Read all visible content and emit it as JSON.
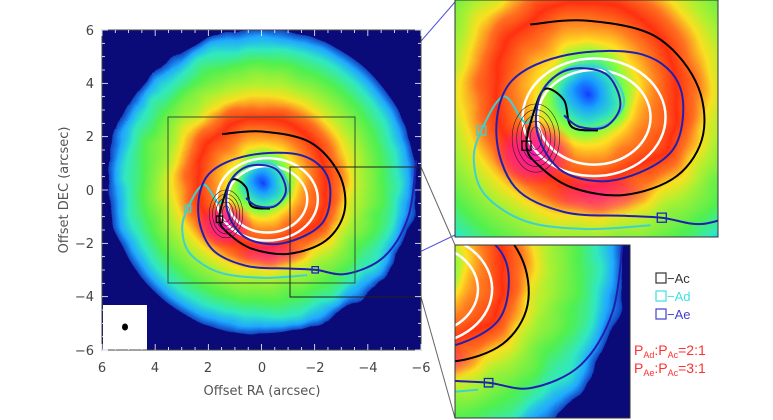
{
  "chart_data": {
    "type": "heatmap",
    "xlabel": "Offset RA (arcsec)",
    "ylabel": "Offset DEC (arcsec)",
    "xlim": [
      6,
      -6
    ],
    "ylim": [
      -6,
      6
    ],
    "xticks": [
      "6",
      "4",
      "2",
      "0",
      "−2",
      "−4",
      "−6"
    ],
    "yticks": [
      "6",
      "4",
      "2",
      "0",
      "−2",
      "−4",
      "−6"
    ],
    "colormap": "rainbow",
    "planets": [
      {
        "name": "Ac",
        "ra": 1.6,
        "dec": -1.1,
        "color": "#000000"
      },
      {
        "name": "Ad",
        "ra": 2.8,
        "dec": -0.7,
        "color": "#40d0d0"
      },
      {
        "name": "Ae",
        "ra": -2.0,
        "dec": -3.0,
        "color": "#2020c0"
      }
    ],
    "legend": [
      {
        "label": "−Ac",
        "color": "#333333"
      },
      {
        "label": "−Ad",
        "color": "#40e0e0"
      },
      {
        "label": "−Ae",
        "color": "#4040d0"
      }
    ],
    "ratios": [
      {
        "a": "P",
        "a_sub": "Ad",
        "b": "P",
        "b_sub": "Ac",
        "value": "=2:1"
      },
      {
        "a": "P",
        "a_sub": "Ae",
        "b": "P",
        "b_sub": "Ac",
        "value": "=3:1"
      }
    ]
  }
}
